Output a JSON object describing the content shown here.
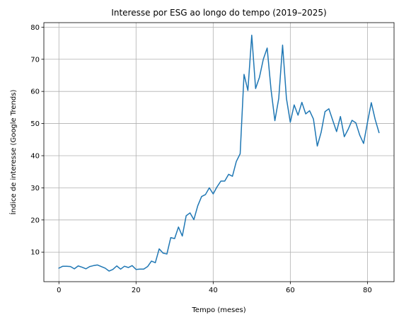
{
  "chart_data": {
    "type": "line",
    "title": "Interesse por ESG ao longo do tempo (2019–2025)",
    "xlabel": "Tempo (meses)",
    "ylabel": "Índice de interesse (Google Trends)",
    "xlim": [
      -3.9,
      86.9
    ],
    "ylim": [
      0.8,
      81.4
    ],
    "xticks": [
      0,
      20,
      40,
      60,
      80
    ],
    "yticks": [
      10,
      20,
      30,
      40,
      50,
      60,
      70,
      80
    ],
    "grid": true,
    "colors": {
      "line": "#1f77b4",
      "grid": "#b0b0b0"
    },
    "series": [
      {
        "x": [
          0,
          1,
          2,
          3,
          4,
          5,
          6,
          7,
          8,
          9,
          10,
          11,
          12,
          13,
          14,
          15,
          16,
          17,
          18,
          19,
          20,
          21,
          22,
          23,
          24,
          25,
          26,
          27,
          28,
          29,
          30,
          31,
          32,
          33,
          34,
          35,
          36,
          37,
          38,
          39,
          40,
          41,
          42,
          43,
          44,
          45,
          46,
          47,
          48,
          49,
          50,
          51,
          52,
          53,
          54,
          55,
          56,
          57,
          58,
          59,
          60,
          61,
          62,
          63,
          64,
          65,
          66,
          67,
          68,
          69,
          70,
          71,
          72,
          73,
          74,
          75,
          76,
          77,
          78,
          79,
          80,
          81,
          82,
          83
        ],
        "values": [
          5.0,
          5.6,
          5.6,
          5.5,
          4.8,
          5.7,
          5.3,
          4.8,
          5.5,
          5.8,
          6.0,
          5.5,
          5.0,
          4.1,
          4.6,
          5.7,
          4.7,
          5.6,
          5.2,
          5.8,
          4.6,
          4.7,
          4.7,
          5.5,
          7.2,
          6.7,
          11.0,
          9.7,
          9.4,
          14.5,
          14.2,
          17.8,
          15.0,
          21.3,
          22.2,
          20.1,
          24.4,
          27.3,
          27.9,
          30.0,
          28.1,
          30.3,
          32.1,
          32.1,
          34.2,
          33.6,
          38.2,
          40.6,
          65.3,
          60.3,
          77.5,
          60.9,
          64.4,
          70.0,
          73.5,
          60.6,
          50.9,
          57.8,
          74.4,
          57.8,
          50.4,
          55.8,
          52.6,
          56.6,
          53.0,
          54.0,
          51.4,
          43.0,
          47.3,
          53.7,
          54.6,
          51.0,
          47.5,
          52.2,
          45.9,
          48.2,
          51.0,
          50.2,
          46.4,
          43.8,
          50.3,
          56.5,
          51.3,
          47.2
        ]
      }
    ]
  }
}
